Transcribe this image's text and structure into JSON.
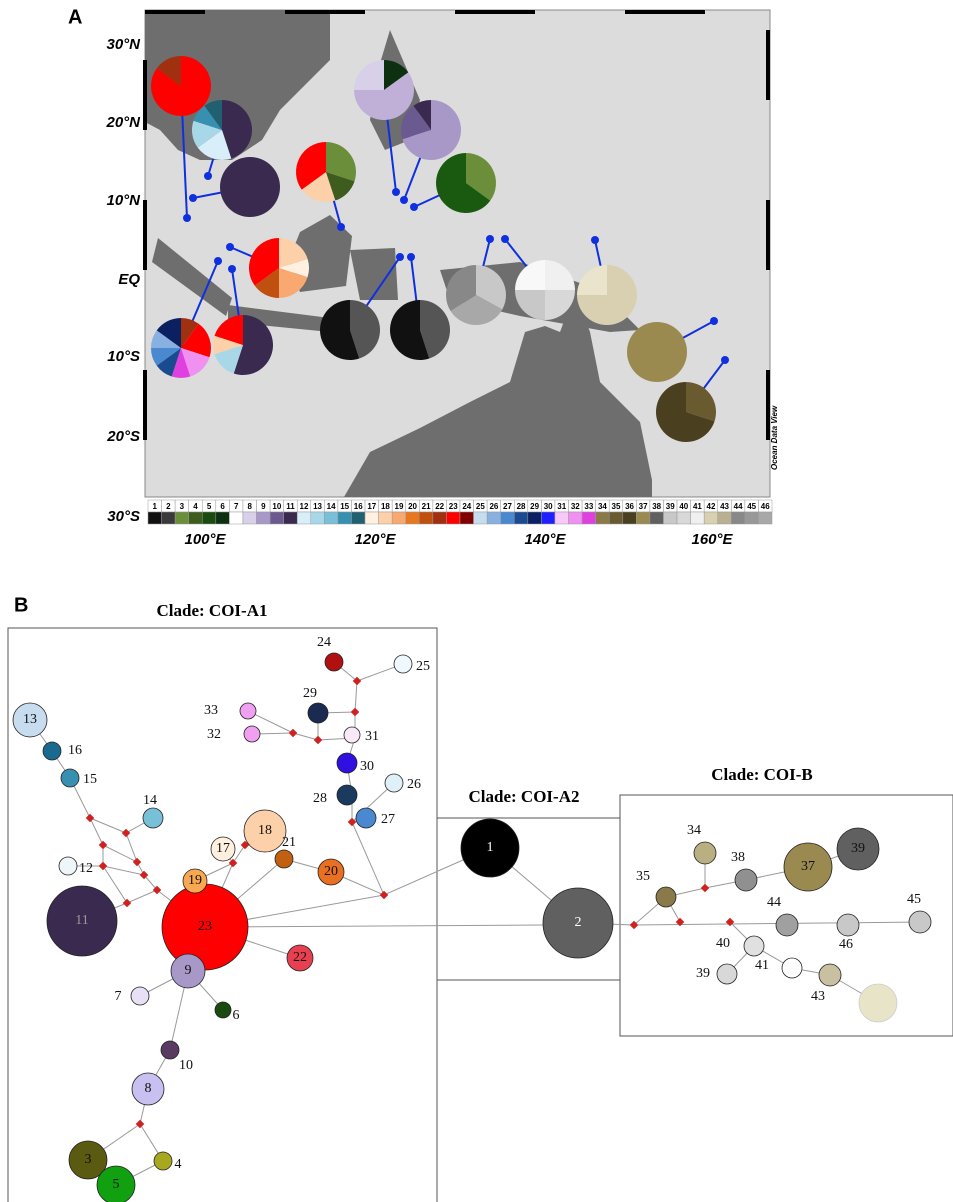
{
  "panel_a": {
    "label": "A",
    "lat_labels": [
      "30°N",
      "20°N",
      "10°N",
      "EQ",
      "10°S",
      "20°S",
      "30°S"
    ],
    "lon_labels": [
      "100°E",
      "120°E",
      "140°E",
      "160°E"
    ],
    "credit": "Ocean Data View",
    "legend": [
      "1",
      "2",
      "3",
      "4",
      "5",
      "6",
      "7",
      "8",
      "9",
      "10",
      "11",
      "12",
      "13",
      "14",
      "15",
      "16",
      "17",
      "18",
      "19",
      "20",
      "21",
      "22",
      "23",
      "24",
      "25",
      "26",
      "27",
      "28",
      "29",
      "30",
      "31",
      "32",
      "33",
      "34",
      "35",
      "36",
      "37",
      "38",
      "39",
      "40",
      "41",
      "42",
      "43",
      "44",
      "45",
      "46"
    ]
  },
  "panel_b": {
    "label": "B",
    "clades": [
      "Clade: COI-A1",
      "Clade: COI-A2",
      "Clade: COI-B"
    ],
    "nodes": [
      "13",
      "16",
      "15",
      "14",
      "12",
      "11",
      "23",
      "22",
      "9",
      "7",
      "6",
      "10",
      "8",
      "3",
      "4",
      "5",
      "19",
      "17",
      "18",
      "21",
      "20",
      "24",
      "25",
      "29",
      "33",
      "31",
      "32",
      "30",
      "28",
      "26",
      "27",
      "1",
      "2",
      "34",
      "35",
      "38",
      "37",
      "39",
      "44",
      "46",
      "45",
      "40",
      "41",
      "39",
      "43"
    ]
  }
}
